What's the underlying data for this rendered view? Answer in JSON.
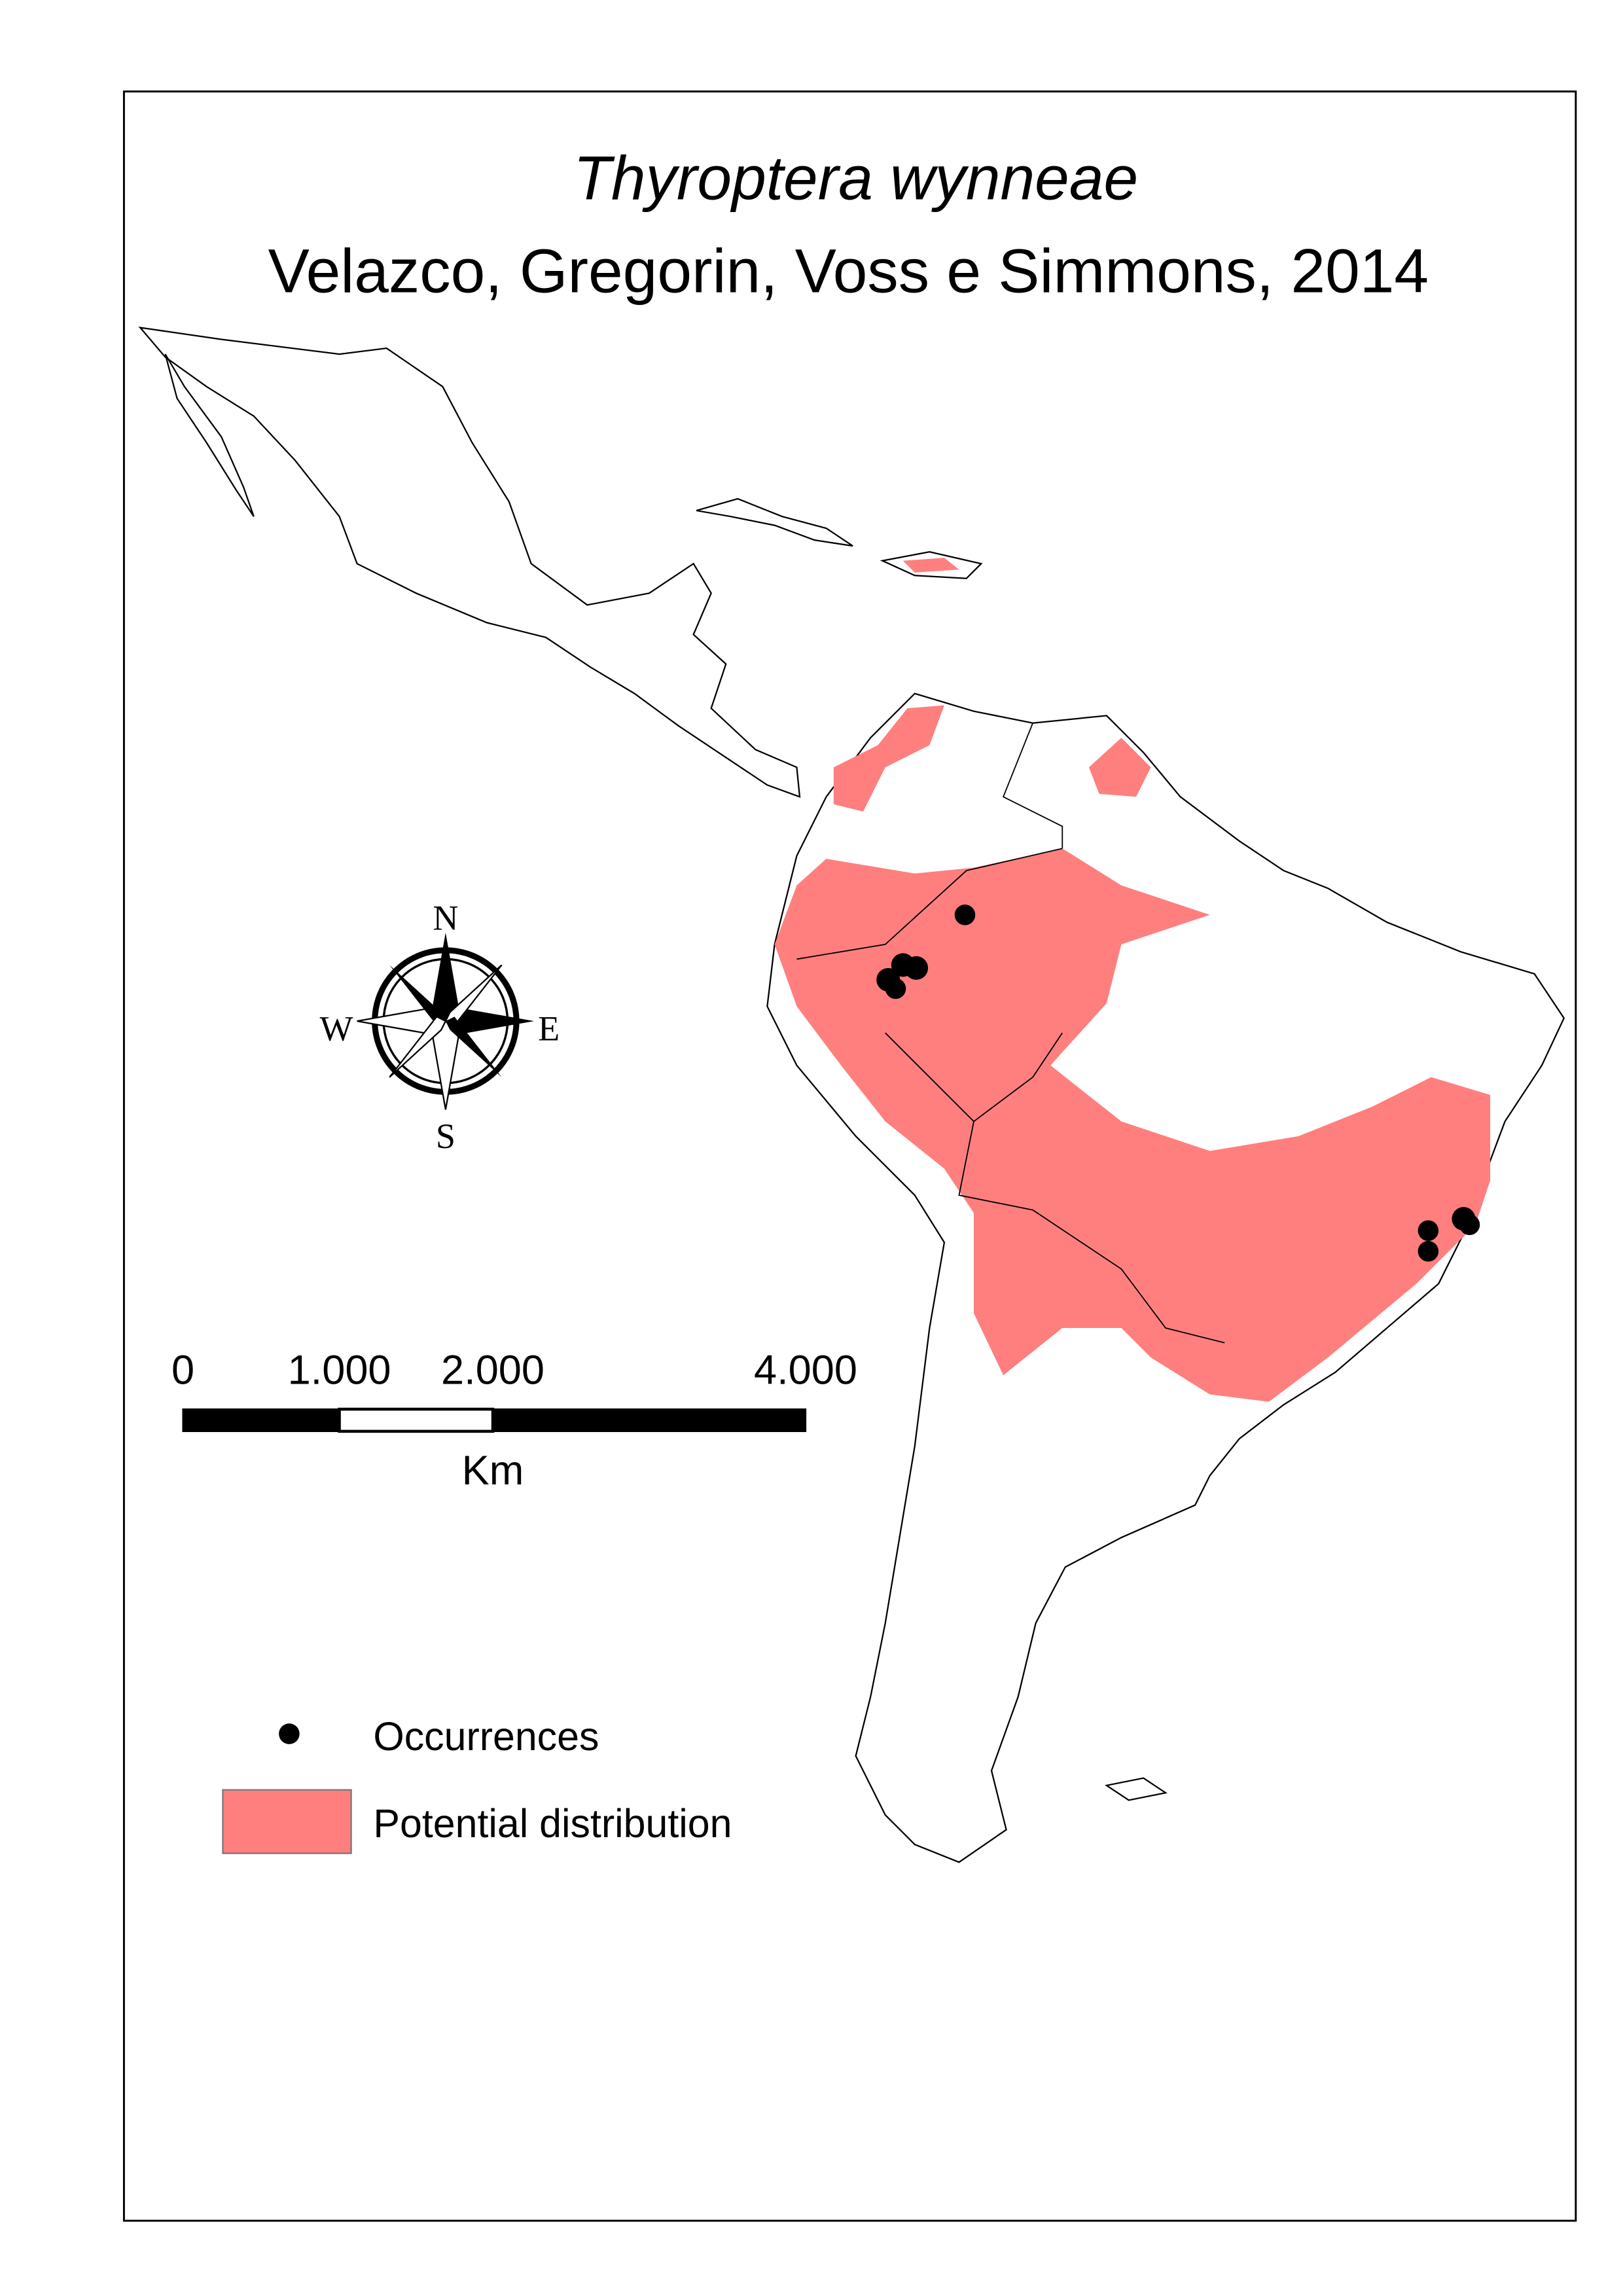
{
  "header": {
    "title": "Thyroptera wynneae",
    "subtitle": "Velazco, Gregorin, Voss e Simmons, 2014"
  },
  "compass": {
    "north": "N",
    "south": "S",
    "east": "E",
    "west": "W"
  },
  "scale_bar": {
    "labels": [
      "0",
      "1.000",
      "2.000",
      "4.000"
    ],
    "unit": "Km"
  },
  "legend": {
    "items": [
      "Occurrences",
      "Potential distribution"
    ]
  }
}
